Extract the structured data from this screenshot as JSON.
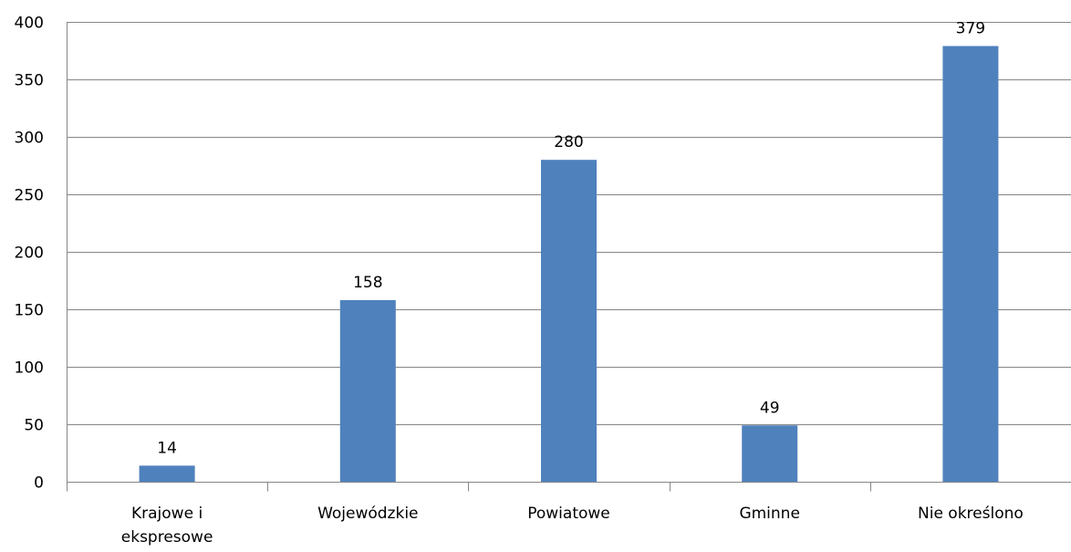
{
  "chart_data": {
    "type": "bar",
    "title": "",
    "xlabel": "",
    "ylabel": "",
    "categories": [
      [
        "Krajowe i",
        "ekspresowe"
      ],
      [
        "Wojewódzkie"
      ],
      [
        "Powiatowe"
      ],
      [
        "Gminne"
      ],
      [
        "Nie określono"
      ]
    ],
    "values": [
      14,
      158,
      280,
      49,
      379
    ],
    "ylim": [
      0,
      400
    ],
    "yticks": [
      0,
      50,
      100,
      150,
      200,
      250,
      300,
      350,
      400
    ],
    "grid": true,
    "legend": "none",
    "bar_color": "#4f81bd",
    "grid_color": "#868686"
  }
}
